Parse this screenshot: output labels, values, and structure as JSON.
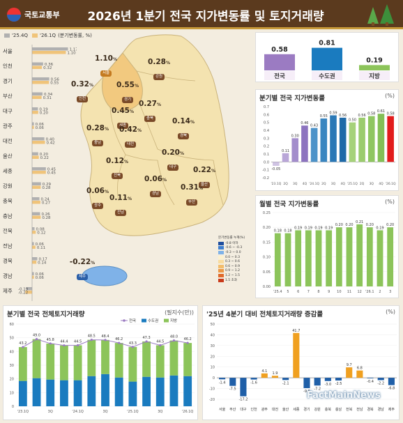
{
  "header": {
    "org": "국토교통부",
    "title": "2026년 1분기 전국 지가변동률 및 토지거래량"
  },
  "colors": {
    "prev_bar": "#b0b0b0",
    "curr_bar": "#f0c47a",
    "purple": "#9b7bc2",
    "blue": "#1a7bbf",
    "green": "#8cc45a",
    "red": "#e21c1c",
    "map_fill": "#f4e3b0",
    "capital_fill": "#f2c97f"
  },
  "left_bars": {
    "legend_prev": "'25.4Q",
    "legend_curr": "'26.1Q",
    "legend_unit": "(분기변동률, %)",
    "rows": [
      {
        "region": "서울",
        "prev": "1.17",
        "curr": "1.10"
      },
      {
        "region": "인천",
        "prev": "0.36",
        "curr": "0.32"
      },
      {
        "region": "경기",
        "prev": "0.56",
        "curr": "0.55"
      },
      {
        "region": "부산",
        "prev": "0.34",
        "curr": "0.31"
      },
      {
        "region": "대구",
        "prev": "0.19",
        "curr": "0.20"
      },
      {
        "region": "광주",
        "prev": "0.06",
        "curr": "0.06"
      },
      {
        "region": "대전",
        "prev": "0.40",
        "curr": "0.42"
      },
      {
        "region": "울산",
        "prev": "0.20",
        "curr": "0.22"
      },
      {
        "region": "세종",
        "prev": "0.45",
        "curr": "0.45"
      },
      {
        "region": "강원",
        "prev": "0.29",
        "curr": "0.28"
      },
      {
        "region": "충북",
        "prev": "0.24",
        "curr": "0.27"
      },
      {
        "region": "충남",
        "prev": "0.26",
        "curr": "0.28"
      },
      {
        "region": "전북",
        "prev": "0.08",
        "curr": "0.12"
      },
      {
        "region": "전남",
        "prev": "0.06",
        "curr": "0.11"
      },
      {
        "region": "경북",
        "prev": "0.17",
        "curr": "0.14"
      },
      {
        "region": "경남",
        "prev": "0.06",
        "curr": "0.06"
      },
      {
        "region": "제주",
        "prev": "-0.19",
        "curr": "-0.22"
      }
    ]
  },
  "map": {
    "labels": [
      {
        "value": "1.10",
        "unit": "%",
        "region": "서울"
      },
      {
        "value": "0.28",
        "unit": "%",
        "region": "강원"
      },
      {
        "value": "0.32",
        "unit": "%",
        "region": "인천"
      },
      {
        "value": "0.55",
        "unit": "%",
        "region": "경기"
      },
      {
        "value": "0.27",
        "unit": "%",
        "region": "충북"
      },
      {
        "value": "0.45",
        "unit": "%",
        "region": "세종"
      },
      {
        "value": "0.14",
        "unit": "%",
        "region": "경북"
      },
      {
        "value": "0.28",
        "unit": "%",
        "region": "충남"
      },
      {
        "value": "0.42",
        "unit": "%",
        "region": "대전"
      },
      {
        "value": "0.20",
        "unit": "%",
        "region": "대구"
      },
      {
        "value": "0.12",
        "unit": "%",
        "region": "전북"
      },
      {
        "value": "0.22",
        "unit": "%",
        "region": "울산"
      },
      {
        "value": "0.06",
        "unit": "%",
        "region": "경남"
      },
      {
        "value": "0.31",
        "unit": "%",
        "region": "부산"
      },
      {
        "value": "0.06",
        "unit": "%",
        "region": "광주"
      },
      {
        "value": "0.11",
        "unit": "%",
        "region": "전남"
      },
      {
        "value": "-0.22",
        "unit": "%",
        "region": "제주"
      }
    ],
    "legend_title": "분기변동률 누계(%)",
    "legend_items": [
      {
        "label": "-0.8 이하",
        "color": "#1f4e9e"
      },
      {
        "label": "-0.6 ~ -0.3",
        "color": "#3f7fd0"
      },
      {
        "label": "-0.3 ~ 0.0",
        "color": "#7fb2e8"
      },
      {
        "label": "0.0 ~ 0.3",
        "color": "#fdf1cf"
      },
      {
        "label": "0.3 ~ 0.6",
        "color": "#f9dc9e"
      },
      {
        "label": "0.6 ~ 0.9",
        "color": "#f3bd6b"
      },
      {
        "label": "0.9 ~ 1.2",
        "color": "#ec9745"
      },
      {
        "label": "1.2 ~ 1.5",
        "color": "#e06a2b"
      },
      {
        "label": "1.5 초과",
        "color": "#c93a1a"
      }
    ]
  },
  "top_summary": {
    "bars": [
      {
        "label": "전국",
        "value": "0.58",
        "color": "#9b7bc2"
      },
      {
        "label": "수도권",
        "value": "0.81",
        "color": "#1a7bbf"
      },
      {
        "label": "지방",
        "value": "0.19",
        "color": "#8cc45a"
      }
    ]
  },
  "quarterly_chart": {
    "title": "분기별 전국 지가변동률",
    "unit": "(%)",
    "y_ticks": [
      "0.7",
      "0.6",
      "0.5",
      "0.4",
      "0.3",
      "0.2",
      "0.1",
      "0.0",
      "-0.1",
      "-0.2"
    ],
    "x_ticks": [
      "'23.1Q",
      "2Q",
      "3Q",
      "4Q",
      "'24.1Q",
      "2Q",
      "3Q",
      "4Q",
      "'25.1Q",
      "2Q",
      "3Q",
      "4Q",
      "'26.1Q"
    ]
  },
  "monthly_chart": {
    "title": "월별 전국 지가변동률",
    "unit": "(%)",
    "y_ticks": [
      "0.25",
      "0.20",
      "0.15",
      "0.10",
      "0.05",
      "0.00"
    ],
    "x_ticks": [
      "'25.4",
      "5",
      "6",
      "7",
      "8",
      "9",
      "10",
      "11",
      "12",
      "'26.1",
      "2",
      "3"
    ]
  },
  "volume_chart": {
    "title": "분기별 전국 전체토지거래량",
    "unit": "(필지수(만))",
    "legend": [
      "전국",
      "수도권",
      "지방"
    ],
    "y_ticks": [
      "60",
      "50",
      "40",
      "30",
      "20",
      "10",
      "0"
    ],
    "x_ticks": [
      "'23.1Q",
      "3Q",
      "'24.1Q",
      "3Q",
      "'25.1Q",
      "3Q",
      "'26.1Q"
    ]
  },
  "change_chart": {
    "title": "'25년 4분기 대비 전체토지거래량 증감률",
    "unit": "(%)",
    "y_ticks": [
      "50",
      "40",
      "30",
      "20",
      "10",
      "0",
      "-10",
      "-20"
    ]
  },
  "watermark": "FactMainNews",
  "chart_data": [
    {
      "type": "bar",
      "title": "",
      "categories": [
        "서울",
        "인천",
        "경기",
        "부산",
        "대구",
        "광주",
        "대전",
        "울산",
        "세종",
        "강원",
        "충북",
        "충남",
        "전북",
        "전남",
        "경북",
        "경남",
        "제주"
      ],
      "series": [
        {
          "name": "'25.4Q",
          "values": [
            1.17,
            0.36,
            0.56,
            0.34,
            0.19,
            0.06,
            0.4,
            0.2,
            0.45,
            0.29,
            0.24,
            0.26,
            0.08,
            0.06,
            0.17,
            0.06,
            -0.19
          ]
        },
        {
          "name": "'26.1Q",
          "values": [
            1.1,
            0.32,
            0.55,
            0.31,
            0.2,
            0.06,
            0.42,
            0.22,
            0.45,
            0.28,
            0.27,
            0.28,
            0.12,
            0.11,
            0.14,
            0.06,
            -0.22
          ]
        }
      ]
    },
    {
      "type": "bar",
      "categories": [
        "전국",
        "수도권",
        "지방"
      ],
      "values": [
        0.58,
        0.81,
        0.19
      ]
    },
    {
      "type": "bar",
      "title": "분기별 전국 지가변동률",
      "categories": [
        "'23.1Q",
        "2Q",
        "3Q",
        "4Q",
        "'24.1Q",
        "2Q",
        "3Q",
        "4Q",
        "'25.1Q",
        "2Q",
        "3Q",
        "4Q",
        "'26.1Q"
      ],
      "values": [
        -0.05,
        0.11,
        0.3,
        0.46,
        0.43,
        0.55,
        0.59,
        0.56,
        0.5,
        0.56,
        0.58,
        0.61,
        0.58
      ],
      "ylim": [
        -0.2,
        0.7
      ]
    },
    {
      "type": "bar",
      "title": "월별 전국 지가변동률",
      "categories": [
        "'25.4",
        "5",
        "6",
        "7",
        "8",
        "9",
        "10",
        "11",
        "12",
        "'26.1",
        "2",
        "3"
      ],
      "values": [
        0.18,
        0.18,
        0.19,
        0.19,
        0.19,
        0.19,
        0.2,
        0.2,
        0.21,
        0.2,
        0.19,
        0.2
      ],
      "ylim": [
        0,
        0.25
      ]
    },
    {
      "type": "bar",
      "title": "분기별 전국 전체토지거래량",
      "categories": [
        "'23.1Q",
        "2Q",
        "3Q",
        "4Q",
        "'24.1Q",
        "2Q",
        "3Q",
        "4Q",
        "'25.1Q",
        "2Q",
        "3Q",
        "4Q",
        "'26.1Q"
      ],
      "series": [
        {
          "name": "전국",
          "values": [
            43.2,
            49.0,
            45.8,
            44.4,
            44.5,
            48.5,
            48.4,
            46.2,
            43.3,
            47.3,
            44.5,
            48.0,
            46.2
          ]
        },
        {
          "name": "수도권",
          "values": [
            18.5,
            20.5,
            19.5,
            19.0,
            19.0,
            22.0,
            23.5,
            21.0,
            18.0,
            21.5,
            21.0,
            22.5,
            22.0
          ]
        },
        {
          "name": "지방",
          "values": [
            24.7,
            28.5,
            26.3,
            25.4,
            25.5,
            26.5,
            24.9,
            25.2,
            25.3,
            25.8,
            23.5,
            25.5,
            24.2
          ]
        }
      ],
      "ylim": [
        0,
        60
      ]
    },
    {
      "type": "bar",
      "title": "'25년 4분기 대비 전체토지거래량 증감률",
      "categories": [
        "서울",
        "부산",
        "대구",
        "인천",
        "광주",
        "대전",
        "울산",
        "세종",
        "경기",
        "강원",
        "충북",
        "충남",
        "전북",
        "전남",
        "경북",
        "경남",
        "제주"
      ],
      "values": [
        -1.4,
        -7.5,
        -17.2,
        -1.6,
        4.1,
        1.9,
        -2.1,
        41.7,
        -9.6,
        -7.2,
        -3.0,
        -2.5,
        9.7,
        6.8,
        -0.4,
        -2.2,
        -6.8
      ],
      "ylim": [
        -20,
        50
      ]
    }
  ]
}
